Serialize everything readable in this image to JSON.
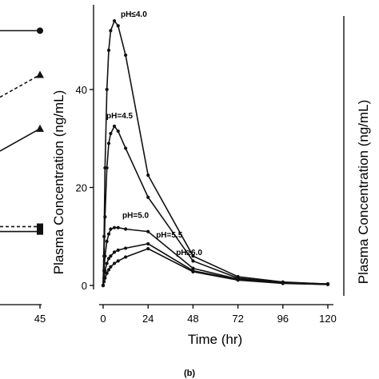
{
  "figure": {
    "panel_label": "(b)"
  },
  "chart_data": [
    {
      "type": "line",
      "panel": "left-partial",
      "title": "",
      "xlabel": "",
      "ylabel": "",
      "x_tick_labels": [
        "45"
      ],
      "series": [
        {
          "marker": "circle",
          "style": "solid",
          "points": [
            {
              "x": 45,
              "y": 52
            }
          ]
        },
        {
          "marker": "triangle",
          "style": "dashed",
          "points": [
            {
              "x": 45,
              "y": 43
            }
          ]
        },
        {
          "marker": "triangle",
          "style": "solid",
          "points": [
            {
              "x": 45,
              "y": 32
            }
          ]
        },
        {
          "marker": "square",
          "style": "dashed",
          "points": [
            {
              "x": 45,
              "y": 12
            }
          ]
        },
        {
          "marker": "square",
          "style": "solid",
          "points": [
            {
              "x": 45,
              "y": 11
            }
          ]
        }
      ]
    },
    {
      "type": "line",
      "panel": "b",
      "title": "",
      "xlabel": "Time (hr)",
      "ylabel": "Plasma Concentration (ng/mL)",
      "xlim": [
        0,
        120
      ],
      "ylim": [
        0,
        55
      ],
      "x_ticks": [
        0,
        24,
        48,
        72,
        96,
        120
      ],
      "y_ticks": [
        0,
        20,
        40
      ],
      "x_tick_labels": [
        "0",
        "24",
        "48",
        "72",
        "96",
        "120"
      ],
      "y_tick_labels": [
        "0",
        "20",
        "40"
      ],
      "grid": false,
      "series": [
        {
          "name": "pH≤4.0",
          "x": [
            0,
            0.5,
            1,
            2,
            3,
            4,
            6,
            8,
            12,
            24,
            48,
            72,
            96,
            120
          ],
          "y": [
            0,
            10,
            24,
            40,
            48,
            52,
            54,
            53,
            47,
            22.5,
            6,
            1.8,
            0.7,
            0.3
          ]
        },
        {
          "name": "pH=4.5",
          "x": [
            0,
            0.5,
            1,
            2,
            3,
            4,
            6,
            8,
            12,
            24,
            48,
            72,
            96,
            120
          ],
          "y": [
            0,
            6,
            14,
            24,
            29,
            31,
            32.5,
            31.5,
            28,
            18,
            5,
            1.5,
            0.6,
            0.3
          ]
        },
        {
          "name": "pH=5.0",
          "x": [
            0,
            0.5,
            1,
            2,
            3,
            4,
            6,
            8,
            12,
            24,
            48,
            72,
            96,
            120
          ],
          "y": [
            0,
            3,
            6,
            9,
            10.5,
            11.5,
            11.8,
            11.8,
            11.5,
            11,
            3.5,
            1.3,
            0.5,
            0.3
          ]
        },
        {
          "name": "pH=5.5",
          "x": [
            0,
            0.5,
            1,
            2,
            3,
            4,
            6,
            8,
            12,
            24,
            48,
            72,
            96,
            120
          ],
          "y": [
            0,
            1.5,
            3,
            4.5,
            5.5,
            6,
            6.8,
            7.2,
            7.6,
            8.5,
            3,
            1.2,
            0.5,
            0.2
          ]
        },
        {
          "name": "pH≥6.0",
          "x": [
            0,
            0.5,
            1,
            2,
            3,
            4,
            6,
            8,
            12,
            24,
            48,
            72,
            96,
            120
          ],
          "y": [
            0,
            0.8,
            1.5,
            2.5,
            3.2,
            3.8,
            4.5,
            5,
            5.8,
            7.5,
            2.8,
            1.1,
            0.4,
            0.2
          ]
        }
      ]
    },
    {
      "type": "line",
      "panel": "right-partial",
      "title": "",
      "xlabel": "",
      "ylabel": "Plasma Concentration (ng/mL)",
      "series": []
    }
  ]
}
